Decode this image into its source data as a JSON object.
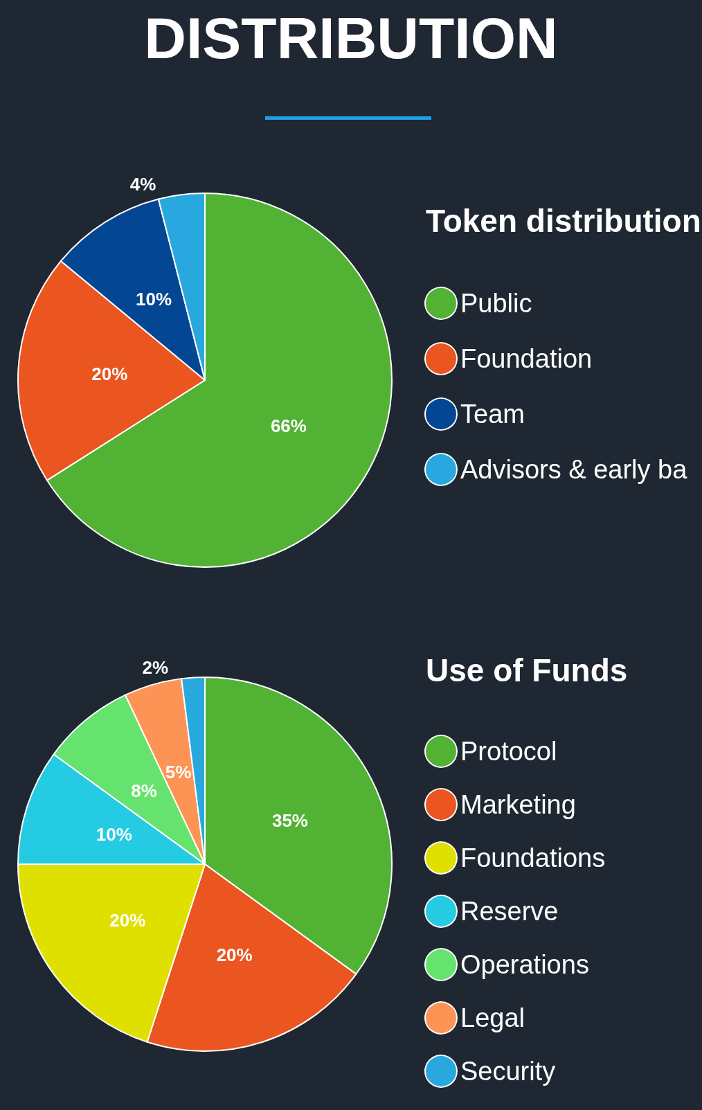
{
  "chart_data": [
    {
      "type": "pie",
      "title": "DISTRIBUTION",
      "legend_title": "Token distribution",
      "legend": "right",
      "categories": [
        "Public",
        "Foundation",
        "Team",
        "Advisors & early ba"
      ],
      "values": [
        66,
        20,
        10,
        4
      ],
      "value_labels": [
        "66%",
        "20%",
        "10%",
        "4%"
      ],
      "colors": [
        "#52b234",
        "#ea5520",
        "#034693",
        "#29a8e0"
      ]
    },
    {
      "type": "pie",
      "legend_title": "Use of Funds",
      "legend": "right",
      "categories": [
        "Protocol",
        "Marketing",
        "Foundations",
        "Reserve",
        "Operations",
        "Legal",
        "Security"
      ],
      "values": [
        35,
        20,
        20,
        10,
        8,
        5,
        2
      ],
      "value_labels": [
        "35%",
        "20%",
        "20%",
        "10%",
        "8%",
        "5%",
        "2%"
      ],
      "colors": [
        "#52b234",
        "#ea5520",
        "#dfe000",
        "#25cbe3",
        "#66e26f",
        "#fe9356",
        "#29a8e0"
      ]
    }
  ]
}
